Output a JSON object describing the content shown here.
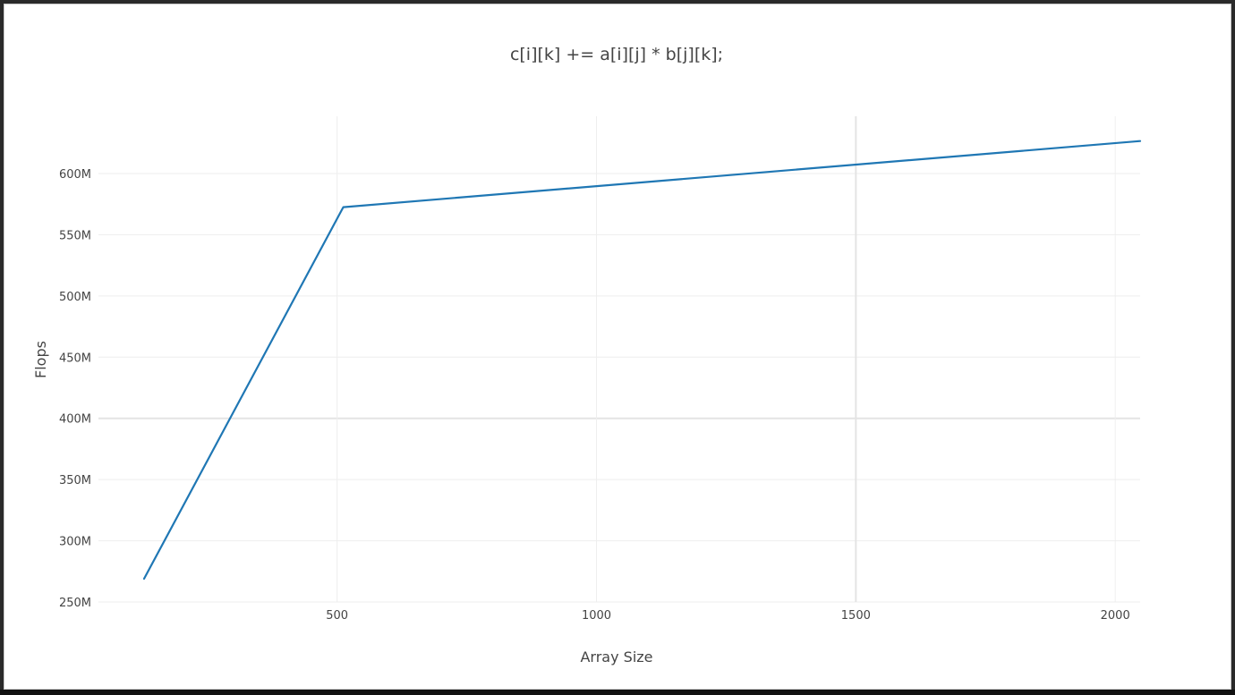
{
  "chart_data": {
    "type": "line",
    "title": "c[i][k] += a[i][j] * b[j][k];",
    "xlabel": "Array Size",
    "ylabel": "Flops",
    "x_ticks": [
      500,
      1000,
      1500,
      2000
    ],
    "x_tick_labels": [
      "500",
      "1000",
      "1500",
      "2000"
    ],
    "y_ticks": [
      250000000,
      300000000,
      350000000,
      400000000,
      450000000,
      500000000,
      550000000,
      600000000
    ],
    "y_tick_labels": [
      "250M",
      "300M",
      "350M",
      "400M",
      "450M",
      "500M",
      "550M",
      "600M"
    ],
    "xlim": [
      40,
      2048
    ],
    "ylim": [
      250000000,
      600000000
    ],
    "grid": true,
    "legend": "none",
    "series": [
      {
        "color": "#1f77b4",
        "x": [
          128,
          512,
          2048
        ],
        "y": [
          269000000,
          572500000,
          626500000
        ]
      }
    ]
  }
}
